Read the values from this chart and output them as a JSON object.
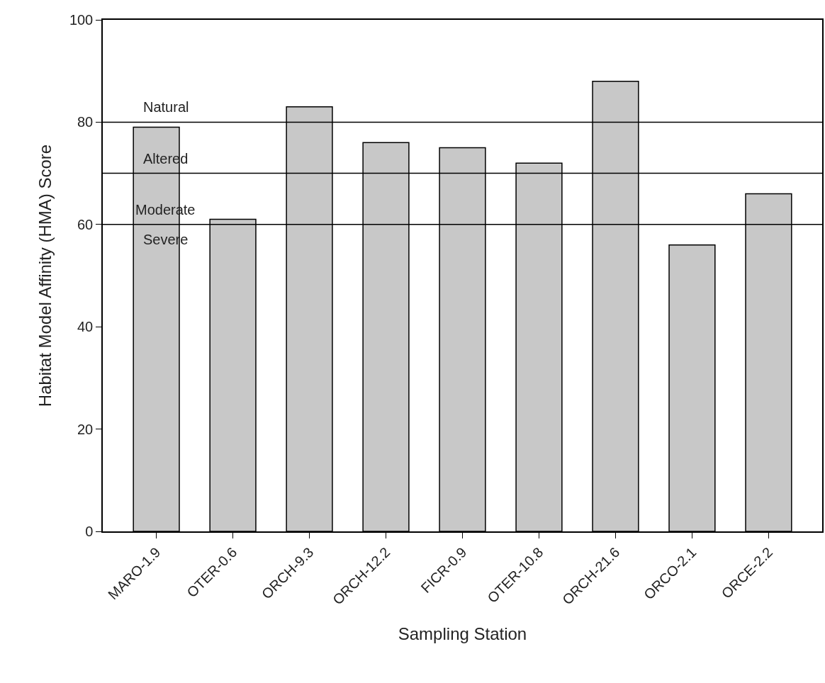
{
  "chart_data": {
    "type": "bar",
    "xlabel": "Sampling Station",
    "ylabel": "Habitat Model Affinity (HMA) Score",
    "categories": [
      "MARO-1.9",
      "OTER-0.6",
      "ORCH-9.3",
      "ORCH-12.2",
      "FICR-0.9",
      "OTER-10.8",
      "ORCH-21.6",
      "ORCO-2.1",
      "ORCE-2.2"
    ],
    "values": [
      79,
      61,
      83,
      76,
      75,
      72,
      88,
      56,
      66
    ],
    "color": "#c8c8c8",
    "ylim": [
      0,
      100
    ],
    "yticks": [
      0,
      20,
      40,
      60,
      80,
      100
    ],
    "ref_lines": [
      {
        "axis": "y",
        "value": 80,
        "color": "#000000"
      },
      {
        "axis": "y",
        "value": 70,
        "color": "#000000"
      },
      {
        "axis": "y",
        "value": 60,
        "color": "#000000"
      }
    ],
    "annotations": [
      "Natural",
      "Altered",
      "Moderate",
      "Severe"
    ]
  }
}
